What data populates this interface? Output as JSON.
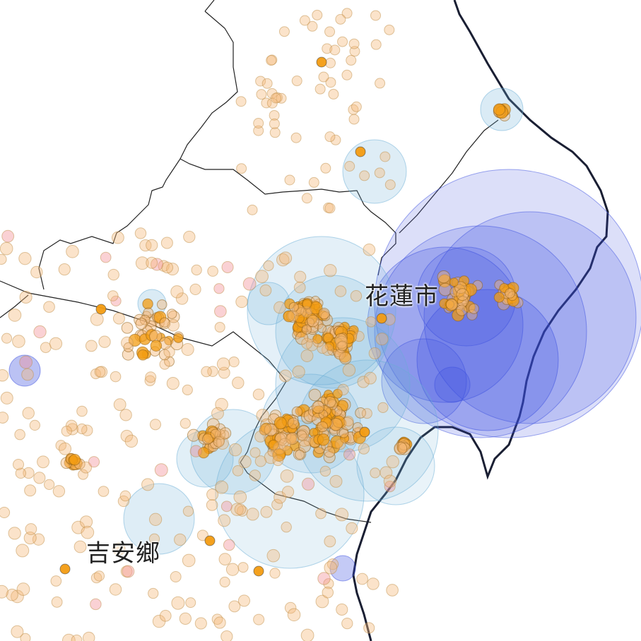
{
  "map": {
    "labels": {
      "hualien_city": "花蓮市",
      "jian_township": "吉安鄉"
    },
    "colors": {
      "background": "#ffffff",
      "boundary_line": "#222222",
      "coastline": "#1a1f33",
      "deep_event": "#3b4fe0",
      "mid_event": "#6aaed6",
      "shallow_event": "#f39c12",
      "small_event": "#f5b97a",
      "pink_event": "#f28b94"
    }
  }
}
